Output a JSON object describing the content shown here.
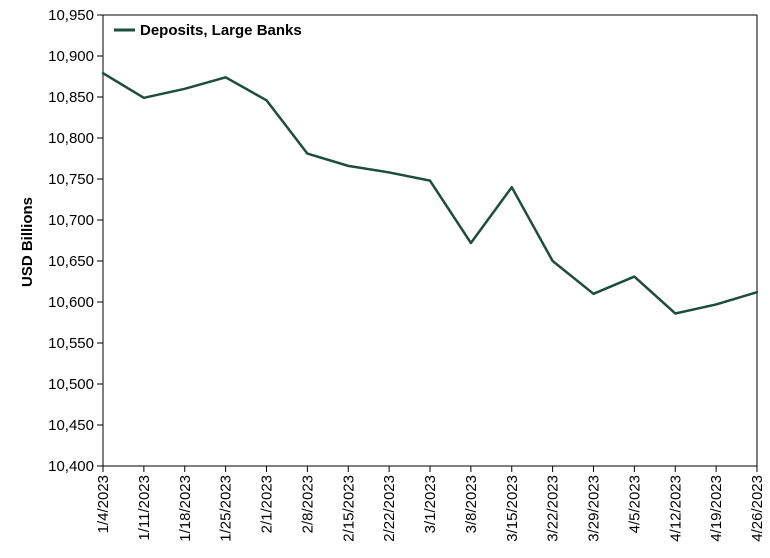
{
  "chart_data": {
    "type": "line",
    "title": "",
    "xlabel": "",
    "ylabel": "USD Billions",
    "ylim": [
      10400,
      10950
    ],
    "ytick_step": 50,
    "grid": false,
    "legend_position": "top-left",
    "line_color": "#1e4d3a",
    "categories": [
      "1/4/2023",
      "1/11/2023",
      "1/18/2023",
      "1/25/2023",
      "2/1/2023",
      "2/8/2023",
      "2/15/2023",
      "2/22/2023",
      "3/1/2023",
      "3/8/2023",
      "3/15/2023",
      "3/22/2023",
      "3/29/2023",
      "4/5/2023",
      "4/12/2023",
      "4/19/2023",
      "4/26/2023"
    ],
    "series": [
      {
        "name": "Deposits, Large Banks",
        "values": [
          10879,
          10849,
          10860,
          10874,
          10846,
          10781,
          10766,
          10758,
          10748,
          10672,
          10740,
          10650,
          10610,
          10631,
          10586,
          10597,
          10612
        ]
      }
    ],
    "ytick_labels": [
      "10,400",
      "10,450",
      "10,500",
      "10,550",
      "10,600",
      "10,650",
      "10,700",
      "10,750",
      "10,800",
      "10,850",
      "10,900",
      "10,950"
    ]
  }
}
